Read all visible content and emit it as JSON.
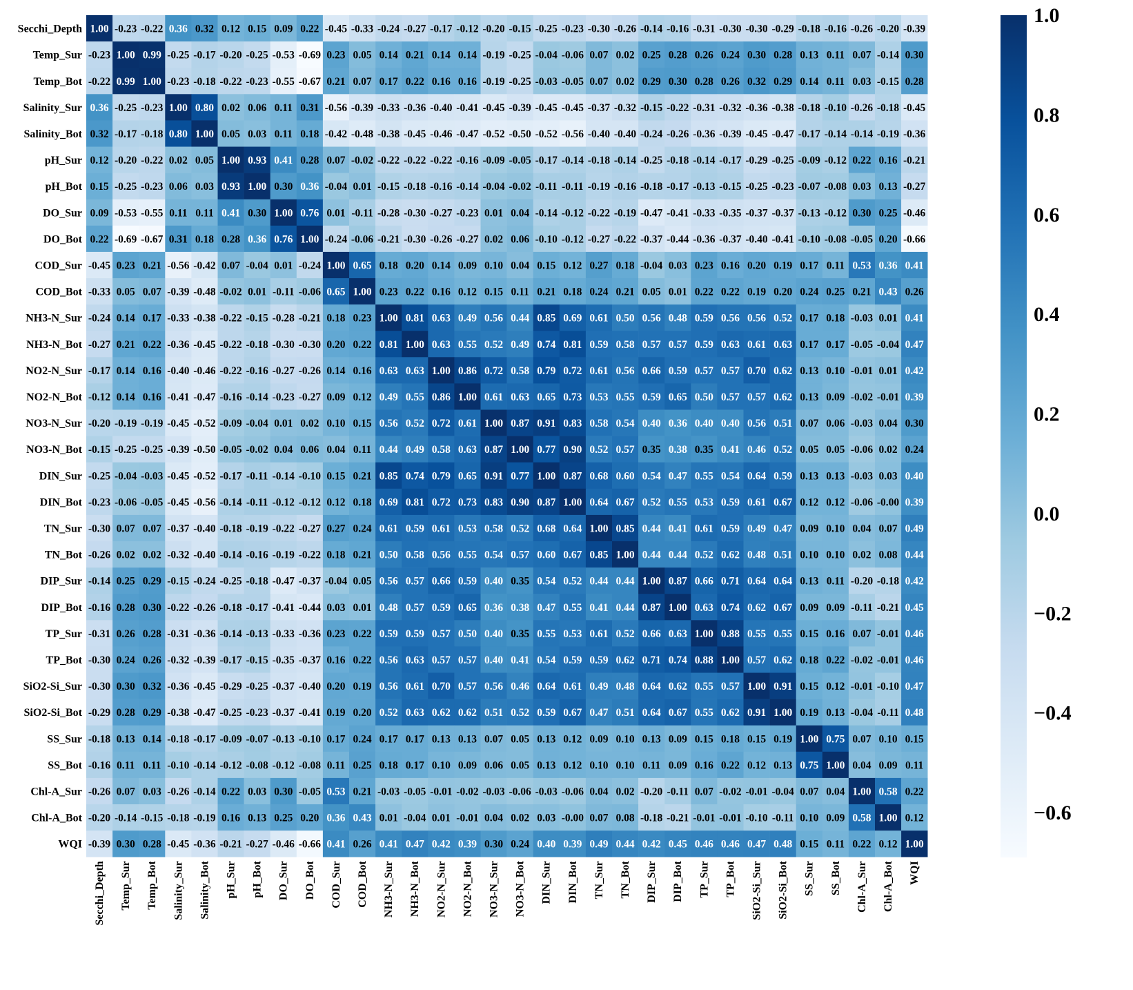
{
  "chart_data": {
    "type": "heatmap",
    "title": "",
    "variables": [
      "Secchi_Depth",
      "Temp_Sur",
      "Temp_Bot",
      "Salinity_Sur",
      "Salinity_Bot",
      "pH_Sur",
      "pH_Bot",
      "DO_Sur",
      "DO_Bot",
      "COD_Sur",
      "COD_Bot",
      "NH3-N_Sur",
      "NH3-N_Bot",
      "NO2-N_Sur",
      "NO2-N_Bot",
      "NO3-N_Sur",
      "NO3-N_Bot",
      "DIN_Sur",
      "DIN_Bot",
      "TN_Sur",
      "TN_Bot",
      "DIP_Sur",
      "DIP_Bot",
      "TP_Sur",
      "TP_Bot",
      "SiO2-Si_Sur",
      "SiO2-Si_Bot",
      "SS_Sur",
      "SS_Bot",
      "Chl-A_Sur",
      "Chl-A_Bot",
      "WQI"
    ],
    "matrix": [
      [
        "1.00",
        "-0.23",
        "-0.22",
        "0.36",
        "0.32",
        "0.12",
        "0.15",
        "0.09",
        "0.22",
        "-0.45",
        "-0.33",
        "-0.24",
        "-0.27",
        "-0.17",
        "-0.12",
        "-0.20",
        "-0.15",
        "-0.25",
        "-0.23",
        "-0.30",
        "-0.26",
        "-0.14",
        "-0.16",
        "-0.31",
        "-0.30",
        "-0.30",
        "-0.29",
        "-0.18",
        "-0.16",
        "-0.26",
        "-0.20",
        "-0.39"
      ],
      [
        "-0.23",
        "1.00",
        "0.99",
        "-0.25",
        "-0.17",
        "-0.20",
        "-0.25",
        "-0.53",
        "-0.69",
        "0.23",
        "0.05",
        "0.14",
        "0.21",
        "0.14",
        "0.14",
        "-0.19",
        "-0.25",
        "-0.04",
        "-0.06",
        "0.07",
        "0.02",
        "0.25",
        "0.28",
        "0.26",
        "0.24",
        "0.30",
        "0.28",
        "0.13",
        "0.11",
        "0.07",
        "-0.14",
        "0.30"
      ],
      [
        "-0.22",
        "0.99",
        "1.00",
        "-0.23",
        "-0.18",
        "-0.22",
        "-0.23",
        "-0.55",
        "-0.67",
        "0.21",
        "0.07",
        "0.17",
        "0.22",
        "0.16",
        "0.16",
        "-0.19",
        "-0.25",
        "-0.03",
        "-0.05",
        "0.07",
        "0.02",
        "0.29",
        "0.30",
        "0.28",
        "0.26",
        "0.32",
        "0.29",
        "0.14",
        "0.11",
        "0.03",
        "-0.15",
        "0.28"
      ],
      [
        "0.36",
        "-0.25",
        "-0.23",
        "1.00",
        "0.80",
        "0.02",
        "0.06",
        "0.11",
        "0.31",
        "-0.56",
        "-0.39",
        "-0.33",
        "-0.36",
        "-0.40",
        "-0.41",
        "-0.45",
        "-0.39",
        "-0.45",
        "-0.45",
        "-0.37",
        "-0.32",
        "-0.15",
        "-0.22",
        "-0.31",
        "-0.32",
        "-0.36",
        "-0.38",
        "-0.18",
        "-0.10",
        "-0.26",
        "-0.18",
        "-0.45"
      ],
      [
        "0.32",
        "-0.17",
        "-0.18",
        "0.80",
        "1.00",
        "0.05",
        "0.03",
        "0.11",
        "0.18",
        "-0.42",
        "-0.48",
        "-0.38",
        "-0.45",
        "-0.46",
        "-0.47",
        "-0.52",
        "-0.50",
        "-0.52",
        "-0.56",
        "-0.40",
        "-0.40",
        "-0.24",
        "-0.26",
        "-0.36",
        "-0.39",
        "-0.45",
        "-0.47",
        "-0.17",
        "-0.14",
        "-0.14",
        "-0.19",
        "-0.36"
      ],
      [
        "0.12",
        "-0.20",
        "-0.22",
        "0.02",
        "0.05",
        "1.00",
        "0.93",
        "0.41",
        "0.28",
        "0.07",
        "-0.02",
        "-0.22",
        "-0.22",
        "-0.22",
        "-0.16",
        "-0.09",
        "-0.05",
        "-0.17",
        "-0.14",
        "-0.18",
        "-0.14",
        "-0.25",
        "-0.18",
        "-0.14",
        "-0.17",
        "-0.29",
        "-0.25",
        "-0.09",
        "-0.12",
        "0.22",
        "0.16",
        "-0.21"
      ],
      [
        "0.15",
        "-0.25",
        "-0.23",
        "0.06",
        "0.03",
        "0.93",
        "1.00",
        "0.30",
        "0.36",
        "-0.04",
        "0.01",
        "-0.15",
        "-0.18",
        "-0.16",
        "-0.14",
        "-0.04",
        "-0.02",
        "-0.11",
        "-0.11",
        "-0.19",
        "-0.16",
        "-0.18",
        "-0.17",
        "-0.13",
        "-0.15",
        "-0.25",
        "-0.23",
        "-0.07",
        "-0.08",
        "0.03",
        "0.13",
        "-0.27"
      ],
      [
        "0.09",
        "-0.53",
        "-0.55",
        "0.11",
        "0.11",
        "0.41",
        "0.30",
        "1.00",
        "0.76",
        "0.01",
        "-0.11",
        "-0.28",
        "-0.30",
        "-0.27",
        "-0.23",
        "0.01",
        "0.04",
        "-0.14",
        "-0.12",
        "-0.22",
        "-0.19",
        "-0.47",
        "-0.41",
        "-0.33",
        "-0.35",
        "-0.37",
        "-0.37",
        "-0.13",
        "-0.12",
        "0.30",
        "0.25",
        "-0.46"
      ],
      [
        "0.22",
        "-0.69",
        "-0.67",
        "0.31",
        "0.18",
        "0.28",
        "0.36",
        "0.76",
        "1.00",
        "-0.24",
        "-0.06",
        "-0.21",
        "-0.30",
        "-0.26",
        "-0.27",
        "0.02",
        "0.06",
        "-0.10",
        "-0.12",
        "-0.27",
        "-0.22",
        "-0.37",
        "-0.44",
        "-0.36",
        "-0.37",
        "-0.40",
        "-0.41",
        "-0.10",
        "-0.08",
        "-0.05",
        "0.20",
        "-0.66"
      ],
      [
        "-0.45",
        "0.23",
        "0.21",
        "-0.56",
        "-0.42",
        "0.07",
        "-0.04",
        "0.01",
        "-0.24",
        "1.00",
        "0.65",
        "0.18",
        "0.20",
        "0.14",
        "0.09",
        "0.10",
        "0.04",
        "0.15",
        "0.12",
        "0.27",
        "0.18",
        "-0.04",
        "0.03",
        "0.23",
        "0.16",
        "0.20",
        "0.19",
        "0.17",
        "0.11",
        "0.53",
        "0.36",
        "0.41"
      ],
      [
        "-0.33",
        "0.05",
        "0.07",
        "-0.39",
        "-0.48",
        "-0.02",
        "0.01",
        "-0.11",
        "-0.06",
        "0.65",
        "1.00",
        "0.23",
        "0.22",
        "0.16",
        "0.12",
        "0.15",
        "0.11",
        "0.21",
        "0.18",
        "0.24",
        "0.21",
        "0.05",
        "0.01",
        "0.22",
        "0.22",
        "0.19",
        "0.20",
        "0.24",
        "0.25",
        "0.21",
        "0.43",
        "0.26"
      ],
      [
        "-0.24",
        "0.14",
        "0.17",
        "-0.33",
        "-0.38",
        "-0.22",
        "-0.15",
        "-0.28",
        "-0.21",
        "0.18",
        "0.23",
        "1.00",
        "0.81",
        "0.63",
        "0.49",
        "0.56",
        "0.44",
        "0.85",
        "0.69",
        "0.61",
        "0.50",
        "0.56",
        "0.48",
        "0.59",
        "0.56",
        "0.56",
        "0.52",
        "0.17",
        "0.18",
        "-0.03",
        "0.01",
        "0.41"
      ],
      [
        "-0.27",
        "0.21",
        "0.22",
        "-0.36",
        "-0.45",
        "-0.22",
        "-0.18",
        "-0.30",
        "-0.30",
        "0.20",
        "0.22",
        "0.81",
        "1.00",
        "0.63",
        "0.55",
        "0.52",
        "0.49",
        "0.74",
        "0.81",
        "0.59",
        "0.58",
        "0.57",
        "0.57",
        "0.59",
        "0.63",
        "0.61",
        "0.63",
        "0.17",
        "0.17",
        "-0.05",
        "-0.04",
        "0.47"
      ],
      [
        "-0.17",
        "0.14",
        "0.16",
        "-0.40",
        "-0.46",
        "-0.22",
        "-0.16",
        "-0.27",
        "-0.26",
        "0.14",
        "0.16",
        "0.63",
        "0.63",
        "1.00",
        "0.86",
        "0.72",
        "0.58",
        "0.79",
        "0.72",
        "0.61",
        "0.56",
        "0.66",
        "0.59",
        "0.57",
        "0.57",
        "0.70",
        "0.62",
        "0.13",
        "0.10",
        "-0.01",
        "0.01",
        "0.42"
      ],
      [
        "-0.12",
        "0.14",
        "0.16",
        "-0.41",
        "-0.47",
        "-0.16",
        "-0.14",
        "-0.23",
        "-0.27",
        "0.09",
        "0.12",
        "0.49",
        "0.55",
        "0.86",
        "1.00",
        "0.61",
        "0.63",
        "0.65",
        "0.73",
        "0.53",
        "0.55",
        "0.59",
        "0.65",
        "0.50",
        "0.57",
        "0.57",
        "0.62",
        "0.13",
        "0.09",
        "-0.02",
        "-0.01",
        "0.39"
      ],
      [
        "-0.20",
        "-0.19",
        "-0.19",
        "-0.45",
        "-0.52",
        "-0.09",
        "-0.04",
        "0.01",
        "0.02",
        "0.10",
        "0.15",
        "0.56",
        "0.52",
        "0.72",
        "0.61",
        "1.00",
        "0.87",
        "0.91",
        "0.83",
        "0.58",
        "0.54",
        "0.40",
        "0.36",
        "0.40",
        "0.40",
        "0.56",
        "0.51",
        "0.07",
        "0.06",
        "-0.03",
        "0.04",
        "0.30"
      ],
      [
        "-0.15",
        "-0.25",
        "-0.25",
        "-0.39",
        "-0.50",
        "-0.05",
        "-0.02",
        "0.04",
        "0.06",
        "0.04",
        "0.11",
        "0.44",
        "0.49",
        "0.58",
        "0.63",
        "0.87",
        "1.00",
        "0.77",
        "0.90",
        "0.52",
        "0.57",
        "0.35",
        "0.38",
        "0.35",
        "0.41",
        "0.46",
        "0.52",
        "0.05",
        "0.05",
        "-0.06",
        "0.02",
        "0.24"
      ],
      [
        "-0.25",
        "-0.04",
        "-0.03",
        "-0.45",
        "-0.52",
        "-0.17",
        "-0.11",
        "-0.14",
        "-0.10",
        "0.15",
        "0.21",
        "0.85",
        "0.74",
        "0.79",
        "0.65",
        "0.91",
        "0.77",
        "1.00",
        "0.87",
        "0.68",
        "0.60",
        "0.54",
        "0.47",
        "0.55",
        "0.54",
        "0.64",
        "0.59",
        "0.13",
        "0.13",
        "-0.03",
        "0.03",
        "0.40"
      ],
      [
        "-0.23",
        "-0.06",
        "-0.05",
        "-0.45",
        "-0.56",
        "-0.14",
        "-0.11",
        "-0.12",
        "-0.12",
        "0.12",
        "0.18",
        "0.69",
        "0.81",
        "0.72",
        "0.73",
        "0.83",
        "0.90",
        "0.87",
        "1.00",
        "0.64",
        "0.67",
        "0.52",
        "0.55",
        "0.53",
        "0.59",
        "0.61",
        "0.67",
        "0.12",
        "0.12",
        "-0.06",
        "-0.00",
        "0.39"
      ],
      [
        "-0.30",
        "0.07",
        "0.07",
        "-0.37",
        "-0.40",
        "-0.18",
        "-0.19",
        "-0.22",
        "-0.27",
        "0.27",
        "0.24",
        "0.61",
        "0.59",
        "0.61",
        "0.53",
        "0.58",
        "0.52",
        "0.68",
        "0.64",
        "1.00",
        "0.85",
        "0.44",
        "0.41",
        "0.61",
        "0.59",
        "0.49",
        "0.47",
        "0.09",
        "0.10",
        "0.04",
        "0.07",
        "0.49"
      ],
      [
        "-0.26",
        "0.02",
        "0.02",
        "-0.32",
        "-0.40",
        "-0.14",
        "-0.16",
        "-0.19",
        "-0.22",
        "0.18",
        "0.21",
        "0.50",
        "0.58",
        "0.56",
        "0.55",
        "0.54",
        "0.57",
        "0.60",
        "0.67",
        "0.85",
        "1.00",
        "0.44",
        "0.44",
        "0.52",
        "0.62",
        "0.48",
        "0.51",
        "0.10",
        "0.10",
        "0.02",
        "0.08",
        "0.44"
      ],
      [
        "-0.14",
        "0.25",
        "0.29",
        "-0.15",
        "-0.24",
        "-0.25",
        "-0.18",
        "-0.47",
        "-0.37",
        "-0.04",
        "0.05",
        "0.56",
        "0.57",
        "0.66",
        "0.59",
        "0.40",
        "0.35",
        "0.54",
        "0.52",
        "0.44",
        "0.44",
        "1.00",
        "0.87",
        "0.66",
        "0.71",
        "0.64",
        "0.64",
        "0.13",
        "0.11",
        "-0.20",
        "-0.18",
        "0.42"
      ],
      [
        "-0.16",
        "0.28",
        "0.30",
        "-0.22",
        "-0.26",
        "-0.18",
        "-0.17",
        "-0.41",
        "-0.44",
        "0.03",
        "0.01",
        "0.48",
        "0.57",
        "0.59",
        "0.65",
        "0.36",
        "0.38",
        "0.47",
        "0.55",
        "0.41",
        "0.44",
        "0.87",
        "1.00",
        "0.63",
        "0.74",
        "0.62",
        "0.67",
        "0.09",
        "0.09",
        "-0.11",
        "-0.21",
        "0.45"
      ],
      [
        "-0.31",
        "0.26",
        "0.28",
        "-0.31",
        "-0.36",
        "-0.14",
        "-0.13",
        "-0.33",
        "-0.36",
        "0.23",
        "0.22",
        "0.59",
        "0.59",
        "0.57",
        "0.50",
        "0.40",
        "0.35",
        "0.55",
        "0.53",
        "0.61",
        "0.52",
        "0.66",
        "0.63",
        "1.00",
        "0.88",
        "0.55",
        "0.55",
        "0.15",
        "0.16",
        "0.07",
        "-0.01",
        "0.46"
      ],
      [
        "-0.30",
        "0.24",
        "0.26",
        "-0.32",
        "-0.39",
        "-0.17",
        "-0.15",
        "-0.35",
        "-0.37",
        "0.16",
        "0.22",
        "0.56",
        "0.63",
        "0.57",
        "0.57",
        "0.40",
        "0.41",
        "0.54",
        "0.59",
        "0.59",
        "0.62",
        "0.71",
        "0.74",
        "0.88",
        "1.00",
        "0.57",
        "0.62",
        "0.18",
        "0.22",
        "-0.02",
        "-0.01",
        "0.46"
      ],
      [
        "-0.30",
        "0.30",
        "0.32",
        "-0.36",
        "-0.45",
        "-0.29",
        "-0.25",
        "-0.37",
        "-0.40",
        "0.20",
        "0.19",
        "0.56",
        "0.61",
        "0.70",
        "0.57",
        "0.56",
        "0.46",
        "0.64",
        "0.61",
        "0.49",
        "0.48",
        "0.64",
        "0.62",
        "0.55",
        "0.57",
        "1.00",
        "0.91",
        "0.15",
        "0.12",
        "-0.01",
        "-0.10",
        "0.47"
      ],
      [
        "-0.29",
        "0.28",
        "0.29",
        "-0.38",
        "-0.47",
        "-0.25",
        "-0.23",
        "-0.37",
        "-0.41",
        "0.19",
        "0.20",
        "0.52",
        "0.63",
        "0.62",
        "0.62",
        "0.51",
        "0.52",
        "0.59",
        "0.67",
        "0.47",
        "0.51",
        "0.64",
        "0.67",
        "0.55",
        "0.62",
        "0.91",
        "1.00",
        "0.19",
        "0.13",
        "-0.04",
        "-0.11",
        "0.48"
      ],
      [
        "-0.18",
        "0.13",
        "0.14",
        "-0.18",
        "-0.17",
        "-0.09",
        "-0.07",
        "-0.13",
        "-0.10",
        "0.17",
        "0.24",
        "0.17",
        "0.17",
        "0.13",
        "0.13",
        "0.07",
        "0.05",
        "0.13",
        "0.12",
        "0.09",
        "0.10",
        "0.13",
        "0.09",
        "0.15",
        "0.18",
        "0.15",
        "0.19",
        "1.00",
        "0.75",
        "0.07",
        "0.10",
        "0.15"
      ],
      [
        "-0.16",
        "0.11",
        "0.11",
        "-0.10",
        "-0.14",
        "-0.12",
        "-0.08",
        "-0.12",
        "-0.08",
        "0.11",
        "0.25",
        "0.18",
        "0.17",
        "0.10",
        "0.09",
        "0.06",
        "0.05",
        "0.13",
        "0.12",
        "0.10",
        "0.10",
        "0.11",
        "0.09",
        "0.16",
        "0.22",
        "0.12",
        "0.13",
        "0.75",
        "1.00",
        "0.04",
        "0.09",
        "0.11"
      ],
      [
        "-0.26",
        "0.07",
        "0.03",
        "-0.26",
        "-0.14",
        "0.22",
        "0.03",
        "0.30",
        "-0.05",
        "0.53",
        "0.21",
        "-0.03",
        "-0.05",
        "-0.01",
        "-0.02",
        "-0.03",
        "-0.06",
        "-0.03",
        "-0.06",
        "0.04",
        "0.02",
        "-0.20",
        "-0.11",
        "0.07",
        "-0.02",
        "-0.01",
        "-0.04",
        "0.07",
        "0.04",
        "1.00",
        "0.58",
        "0.22"
      ],
      [
        "-0.20",
        "-0.14",
        "-0.15",
        "-0.18",
        "-0.19",
        "0.16",
        "0.13",
        "0.25",
        "0.20",
        "0.36",
        "0.43",
        "0.01",
        "-0.04",
        "0.01",
        "-0.01",
        "0.04",
        "0.02",
        "0.03",
        "-0.00",
        "0.07",
        "0.08",
        "-0.18",
        "-0.21",
        "-0.01",
        "-0.01",
        "-0.10",
        "-0.11",
        "0.10",
        "0.09",
        "0.58",
        "1.00",
        "0.12"
      ],
      [
        "-0.39",
        "0.30",
        "0.28",
        "-0.45",
        "-0.36",
        "-0.21",
        "-0.27",
        "-0.46",
        "-0.66",
        "0.41",
        "0.26",
        "0.41",
        "0.47",
        "0.42",
        "0.39",
        "0.30",
        "0.24",
        "0.40",
        "0.39",
        "0.49",
        "0.44",
        "0.42",
        "0.45",
        "0.46",
        "0.46",
        "0.47",
        "0.48",
        "0.15",
        "0.11",
        "0.22",
        "0.12",
        "1.00"
      ]
    ],
    "colorbar": {
      "min": -0.69,
      "max": 1.0,
      "ticks": [
        1.0,
        0.8,
        0.6,
        0.4,
        0.2,
        0.0,
        -0.2,
        -0.4,
        -0.6
      ],
      "tick_labels": [
        "1.0",
        "0.8",
        "0.6",
        "0.4",
        "0.2",
        "0.0",
        "−0.2",
        "−0.4",
        "−0.6"
      ],
      "colormap": "Blues",
      "colors": [
        "#f7fbff",
        "#deebf7",
        "#c6dbef",
        "#9ecae1",
        "#6baed6",
        "#4292c6",
        "#2171b5",
        "#08519c",
        "#08306b"
      ]
    }
  }
}
